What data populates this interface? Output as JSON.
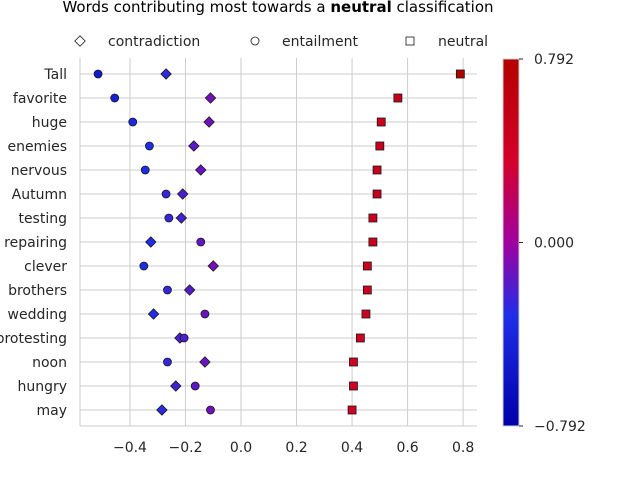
{
  "chart_data": {
    "type": "scatter",
    "title": {
      "prefix": "Words contributing most towards a ",
      "bold": "neutral",
      "suffix": " classification"
    },
    "xlabel": "",
    "ylabel": "",
    "xlim": [
      -0.58,
      0.85
    ],
    "xticks": [
      -0.4,
      -0.2,
      0.0,
      0.2,
      0.4,
      0.6,
      0.8
    ],
    "xtick_labels": [
      "−0.4",
      "−0.2",
      "0.0",
      "0.2",
      "0.4",
      "0.6",
      "0.8"
    ],
    "grid": true,
    "legend_placement": "top",
    "categories": [
      "Tall",
      "favorite",
      "huge",
      "enemies",
      "nervous",
      "Autumn",
      "testing",
      "repairing",
      "clever",
      "brothers",
      "wedding",
      "protesting",
      "noon",
      "hungry",
      "may"
    ],
    "series": [
      {
        "name": "contradiction",
        "marker": "diamond",
        "values": [
          -0.27,
          -0.11,
          -0.115,
          -0.17,
          -0.145,
          -0.21,
          -0.215,
          -0.325,
          -0.1,
          -0.185,
          -0.315,
          -0.22,
          -0.13,
          -0.235,
          -0.285
        ]
      },
      {
        "name": "entailment",
        "marker": "circle",
        "values": [
          -0.515,
          -0.455,
          -0.39,
          -0.33,
          -0.345,
          -0.27,
          -0.26,
          -0.145,
          -0.35,
          -0.265,
          -0.13,
          -0.205,
          -0.265,
          -0.165,
          -0.11
        ]
      },
      {
        "name": "neutral",
        "marker": "square",
        "values": [
          0.79,
          0.565,
          0.505,
          0.5,
          0.49,
          0.49,
          0.475,
          0.475,
          0.455,
          0.455,
          0.45,
          0.43,
          0.405,
          0.405,
          0.4
        ]
      }
    ],
    "colorbar": {
      "min": -0.792,
      "max": 0.792,
      "tick_values": [
        0.792,
        0.0,
        -0.792
      ],
      "tick_labels": [
        "0.792",
        "0.000",
        "−0.792"
      ],
      "colors": {
        "low": "#0000a8",
        "mid_low": "#1f2ee8",
        "mid": "#a000a0",
        "mid_high": "#d4002a",
        "high": "#b20000"
      }
    }
  }
}
